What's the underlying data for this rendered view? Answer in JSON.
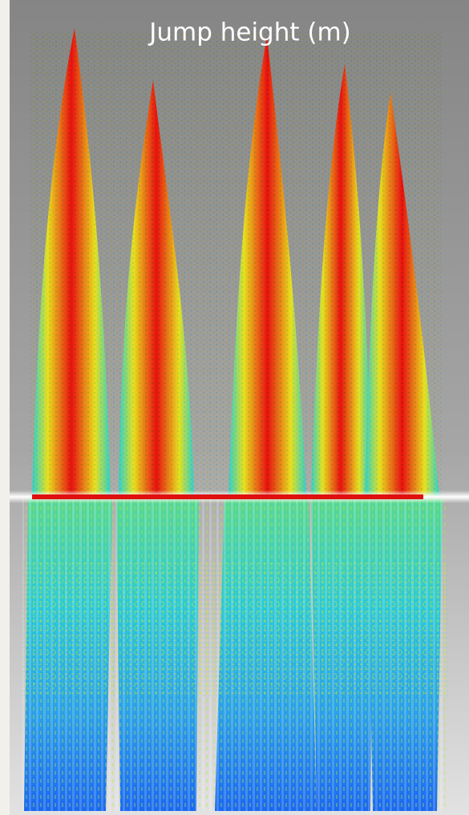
{
  "title": "Jump height (m)"
}
